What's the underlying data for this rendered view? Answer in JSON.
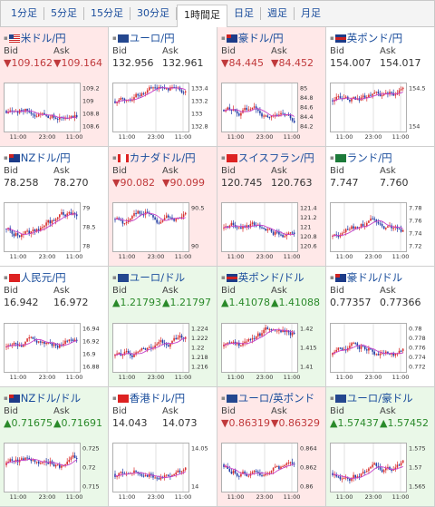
{
  "timeframes": [
    {
      "label": "1分足",
      "active": false
    },
    {
      "label": "5分足",
      "active": false
    },
    {
      "label": "15分足",
      "active": false
    },
    {
      "label": "30分足",
      "active": false
    },
    {
      "label": "1時間足",
      "active": true
    },
    {
      "label": "日足",
      "active": false
    },
    {
      "label": "週足",
      "active": false
    },
    {
      "label": "月足",
      "active": false
    }
  ],
  "bid_label": "Bid",
  "ask_label": "Ask",
  "pairs": [
    {
      "name": "米ドル/円",
      "flag": "us",
      "bg": "pink",
      "dir": "down",
      "bid": "▼109.162",
      "ask": "▼109.164",
      "x_labels": [
        "11:00",
        "23:00",
        "11:00"
      ],
      "y_labels": [
        "109.2",
        "109",
        "108.8",
        "108.6"
      ]
    },
    {
      "name": "ユーロ/円",
      "flag": "eu",
      "bg": "white",
      "dir": "flat",
      "bid": "132.956",
      "ask": "132.961",
      "x_labels": [
        "11:00",
        "23:00",
        "11:00"
      ],
      "y_labels": [
        "133.4",
        "133.2",
        "133",
        "132.8"
      ]
    },
    {
      "name": "豪ドル/円",
      "flag": "au",
      "bg": "pink",
      "dir": "down",
      "bid": "▼84.445",
      "ask": "▼84.452",
      "x_labels": [
        "11:00",
        "23:00",
        "11:00"
      ],
      "y_labels": [
        "85",
        "84.8",
        "84.6",
        "84.4",
        "84.2"
      ]
    },
    {
      "name": "英ポンド/円",
      "flag": "gb",
      "bg": "white",
      "dir": "flat",
      "bid": "154.007",
      "ask": "154.017",
      "x_labels": [
        "11:00",
        "23:00",
        "11:00"
      ],
      "y_labels": [
        "154.5",
        "154"
      ]
    },
    {
      "name": "NZドル/円",
      "flag": "nz",
      "bg": "white",
      "dir": "flat",
      "bid": "78.258",
      "ask": "78.270",
      "x_labels": [
        "11:00",
        "23:00",
        "11:00"
      ],
      "y_labels": [
        "79",
        "78.5",
        "78"
      ]
    },
    {
      "name": "カナダドル/円",
      "flag": "ca",
      "bg": "pink",
      "dir": "down",
      "bid": "▼90.082",
      "ask": "▼90.099",
      "x_labels": [
        "11:00",
        "23:00",
        "11:00"
      ],
      "y_labels": [
        "90.5",
        "90"
      ]
    },
    {
      "name": "スイスフラン/円",
      "flag": "ch",
      "bg": "pink",
      "dir": "flat",
      "bid": "120.745",
      "ask": "120.763",
      "x_labels": [
        "11:00",
        "23:00",
        "11:00"
      ],
      "y_labels": [
        "121.4",
        "121.2",
        "121",
        "120.8",
        "120.6"
      ]
    },
    {
      "name": "ランド/円",
      "flag": "za",
      "bg": "white",
      "dir": "flat",
      "bid": "7.747",
      "ask": "7.760",
      "x_labels": [
        "11:00",
        "23:00",
        "11:00"
      ],
      "y_labels": [
        "7.78",
        "7.76",
        "7.74",
        "7.72"
      ]
    },
    {
      "name": "人民元/円",
      "flag": "cn",
      "bg": "white",
      "dir": "flat",
      "bid": "16.942",
      "ask": "16.972",
      "x_labels": [
        "11:00",
        "23:00",
        "11:00"
      ],
      "y_labels": [
        "16.94",
        "16.92",
        "16.9",
        "16.88"
      ]
    },
    {
      "name": "ユーロ/ドル",
      "flag": "eu",
      "bg": "green",
      "dir": "up",
      "bid": "▲1.21793",
      "ask": "▲1.21797",
      "x_labels": [
        "11:00",
        "23:00",
        "11:00"
      ],
      "y_labels": [
        "1.224",
        "1.222",
        "1.22",
        "1.218",
        "1.216"
      ]
    },
    {
      "name": "英ポンド/ドル",
      "flag": "gb",
      "bg": "green",
      "dir": "up",
      "bid": "▲1.41078",
      "ask": "▲1.41088",
      "x_labels": [
        "11:00",
        "23:00",
        "11:00"
      ],
      "y_labels": [
        "1.42",
        "1.415",
        "1.41"
      ]
    },
    {
      "name": "豪ドル/ドル",
      "flag": "au",
      "bg": "white",
      "dir": "flat",
      "bid": "0.77357",
      "ask": "0.77366",
      "x_labels": [
        "11:00",
        "23:00",
        "11:00"
      ],
      "y_labels": [
        "0.78",
        "0.778",
        "0.776",
        "0.774",
        "0.772"
      ]
    },
    {
      "name": "NZドル/ドル",
      "flag": "nz",
      "bg": "green",
      "dir": "up",
      "bid": "▲0.71675",
      "ask": "▲0.71691",
      "x_labels": [
        "11:00",
        "23:00",
        "11:00"
      ],
      "y_labels": [
        "0.725",
        "0.72",
        "0.715"
      ]
    },
    {
      "name": "香港ドル/円",
      "flag": "hk",
      "bg": "white",
      "dir": "flat",
      "bid": "14.043",
      "ask": "14.073",
      "x_labels": [
        "11:00",
        "23:00",
        "11:00"
      ],
      "y_labels": [
        "14.05",
        "14"
      ]
    },
    {
      "name": "ユーロ/英ポンド",
      "flag": "eu",
      "bg": "pink",
      "dir": "down",
      "bid": "▼0.86319",
      "ask": "▼0.86329",
      "x_labels": [
        "11:00",
        "23:00",
        "11:00"
      ],
      "y_labels": [
        "0.864",
        "0.862",
        "0.86"
      ]
    },
    {
      "name": "ユーロ/豪ドル",
      "flag": "eu",
      "bg": "green",
      "dir": "up",
      "bid": "▲1.57437",
      "ask": "▲1.57452",
      "x_labels": [
        "11:00",
        "23:00",
        "11:00"
      ],
      "y_labels": [
        "1.575",
        "1.57",
        "1.565"
      ]
    }
  ]
}
